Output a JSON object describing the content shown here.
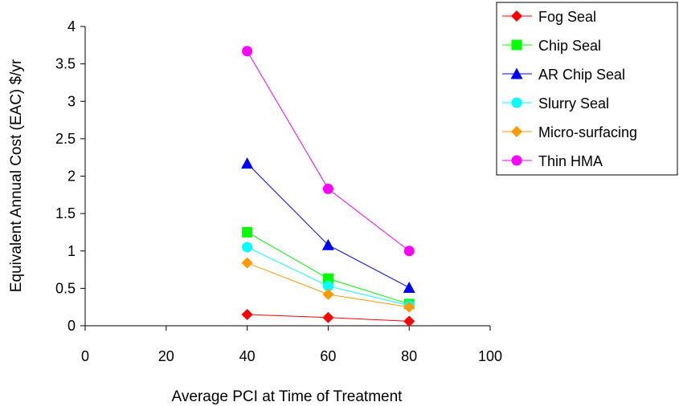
{
  "chart_data": {
    "type": "line",
    "title": "",
    "xlabel": "Average PCI at Time of Treatment",
    "ylabel": "Equivalent Annual Cost (EAC) $/yr",
    "xlim": [
      0,
      100
    ],
    "ylim": [
      0,
      4
    ],
    "x_ticks": [
      "0",
      "20",
      "40",
      "60",
      "80",
      "100"
    ],
    "y_ticks": [
      "0",
      "0.5",
      "1",
      "1.5",
      "2",
      "2.5",
      "3",
      "3.5",
      "4"
    ],
    "x": [
      40,
      60,
      80
    ],
    "grid": false,
    "legend_position": "top-right",
    "series": [
      {
        "name": "Fog Seal",
        "values": [
          0.15,
          0.11,
          0.06
        ],
        "color": "#ff0000",
        "marker": "diamond"
      },
      {
        "name": "Chip Seal",
        "values": [
          1.25,
          0.63,
          0.29
        ],
        "color": "#00ff00",
        "marker": "square"
      },
      {
        "name": "AR Chip Seal",
        "values": [
          2.17,
          1.08,
          0.51
        ],
        "color": "#0000ff",
        "marker": "triangle"
      },
      {
        "name": "Slurry Seal",
        "values": [
          1.05,
          0.53,
          0.27
        ],
        "color": "#00ffff",
        "marker": "circle"
      },
      {
        "name": "Micro-surfacing",
        "values": [
          0.84,
          0.42,
          0.25
        ],
        "color": "#ff9900",
        "marker": "diamond"
      },
      {
        "name": "Thin HMA",
        "values": [
          3.67,
          1.83,
          1.0
        ],
        "color": "#ff00ff",
        "marker": "circle"
      }
    ]
  }
}
